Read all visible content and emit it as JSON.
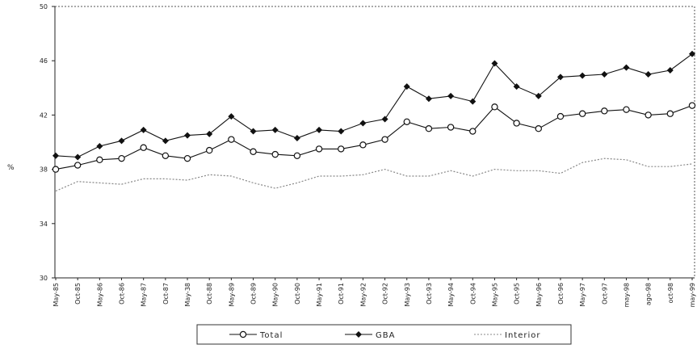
{
  "chart_data": {
    "type": "line",
    "title": "",
    "xlabel": "",
    "ylabel": "%",
    "ylim": [
      30,
      50
    ],
    "yticks": [
      30,
      34,
      38,
      42,
      46,
      50
    ],
    "categories": [
      "May-85",
      "Oct-85",
      "May-86",
      "Oct-86",
      "May-87",
      "Oct-87",
      "May-38",
      "Oct-88",
      "May-89",
      "Oct-89",
      "May-90",
      "Oct-90",
      "May-91",
      "Oct-91",
      "May-92",
      "Oct-92",
      "May-93",
      "Oct-93",
      "May-94",
      "Oct-94",
      "May-95",
      "Oct-95",
      "May-96",
      "Oct-96",
      "May-97",
      "Oct-97",
      "may-98",
      "ago-98",
      "oct-98",
      "may-99"
    ],
    "series": [
      {
        "name": "Total",
        "marker": "open-circle",
        "color": "#111111",
        "values": [
          38.0,
          38.3,
          38.7,
          38.8,
          39.6,
          39.0,
          38.8,
          39.4,
          40.2,
          39.3,
          39.1,
          39.0,
          39.5,
          39.5,
          39.8,
          40.2,
          41.5,
          41.0,
          41.1,
          40.8,
          42.6,
          41.4,
          41.0,
          41.9,
          42.1,
          42.3,
          42.4,
          42.0,
          42.1,
          42.7
        ]
      },
      {
        "name": "GBA",
        "marker": "filled-diamond",
        "color": "#111111",
        "values": [
          39.0,
          38.9,
          39.7,
          40.1,
          40.9,
          40.1,
          40.5,
          40.6,
          41.9,
          40.8,
          40.9,
          40.3,
          40.9,
          40.8,
          41.4,
          41.7,
          44.1,
          43.2,
          43.4,
          43.0,
          45.8,
          44.1,
          43.4,
          44.8,
          44.9,
          45.0,
          45.5,
          45.0,
          45.3,
          46.5
        ]
      },
      {
        "name": "Interior",
        "marker": "none",
        "dashed": true,
        "color": "#888888",
        "values": [
          36.4,
          37.1,
          37.0,
          36.9,
          37.3,
          37.3,
          37.2,
          37.6,
          37.5,
          37.0,
          36.6,
          37.0,
          37.5,
          37.5,
          37.6,
          38.0,
          37.5,
          37.5,
          37.9,
          37.5,
          38.0,
          37.9,
          37.9,
          37.7,
          38.5,
          38.8,
          38.7,
          38.2,
          38.2,
          38.4
        ]
      }
    ],
    "grid": false,
    "legend_position": "bottom"
  }
}
